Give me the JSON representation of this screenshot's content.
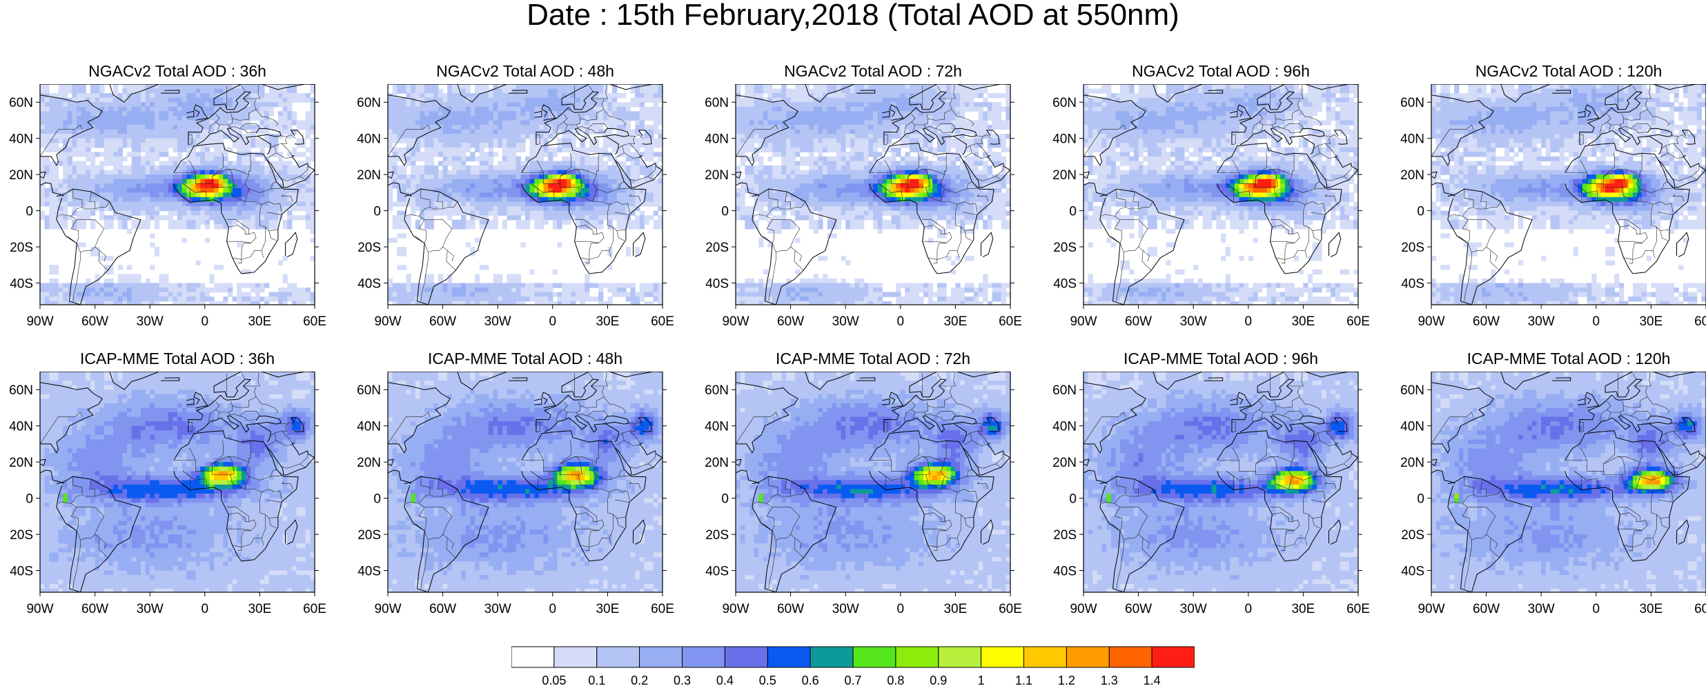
{
  "title": "Date : 15th February,2018 (Total AOD at 550nm)",
  "map_extent": {
    "lon": [
      -90,
      60
    ],
    "lat": [
      -52,
      70
    ]
  },
  "lat_ticks": [
    {
      "value": 60,
      "label": "60N"
    },
    {
      "value": 40,
      "label": "40N"
    },
    {
      "value": 20,
      "label": "20N"
    },
    {
      "value": 0,
      "label": "0"
    },
    {
      "value": -20,
      "label": "20S"
    },
    {
      "value": -40,
      "label": "40S"
    }
  ],
  "lon_ticks": [
    {
      "value": -90,
      "label": "90W"
    },
    {
      "value": -60,
      "label": "60W"
    },
    {
      "value": -30,
      "label": "30W"
    },
    {
      "value": 0,
      "label": "0"
    },
    {
      "value": 30,
      "label": "30E"
    },
    {
      "value": 60,
      "label": "60E"
    }
  ],
  "panels": [
    {
      "model": "NGACv2",
      "title": "NGACv2 Total AOD : 36h",
      "hour": 36
    },
    {
      "model": "NGACv2",
      "title": "NGACv2 Total AOD : 48h",
      "hour": 48
    },
    {
      "model": "NGACv2",
      "title": "NGACv2 Total AOD : 72h",
      "hour": 72
    },
    {
      "model": "NGACv2",
      "title": "NGACv2 Total AOD : 96h",
      "hour": 96
    },
    {
      "model": "NGACv2",
      "title": "NGACv2 Total AOD : 120h",
      "hour": 120
    },
    {
      "model": "ICAP-MME",
      "title": "ICAP-MME Total AOD : 36h",
      "hour": 36
    },
    {
      "model": "ICAP-MME",
      "title": "ICAP-MME Total AOD : 48h",
      "hour": 48
    },
    {
      "model": "ICAP-MME",
      "title": "ICAP-MME Total AOD : 72h",
      "hour": 72
    },
    {
      "model": "ICAP-MME",
      "title": "ICAP-MME Total AOD : 96h",
      "hour": 96
    },
    {
      "model": "ICAP-MME",
      "title": "ICAP-MME Total AOD : 120h",
      "hour": 120
    }
  ],
  "colorbar": {
    "labels": [
      "0.05",
      "0.1",
      "0.2",
      "0.3",
      "0.4",
      "0.5",
      "0.6",
      "0.7",
      "0.8",
      "0.9",
      "1",
      "1.1",
      "1.2",
      "1.3",
      "1.4"
    ],
    "colors": [
      "#ffffff",
      "#d4dcf8",
      "#b4c4f4",
      "#97aef3",
      "#8094f0",
      "#6870ea",
      "#0a5af2",
      "#0f9a9a",
      "#55e61b",
      "#8cec0c",
      "#b6f03c",
      "#ffff00",
      "#ffc800",
      "#ff9c00",
      "#ff6400",
      "#ff1e14"
    ]
  }
}
